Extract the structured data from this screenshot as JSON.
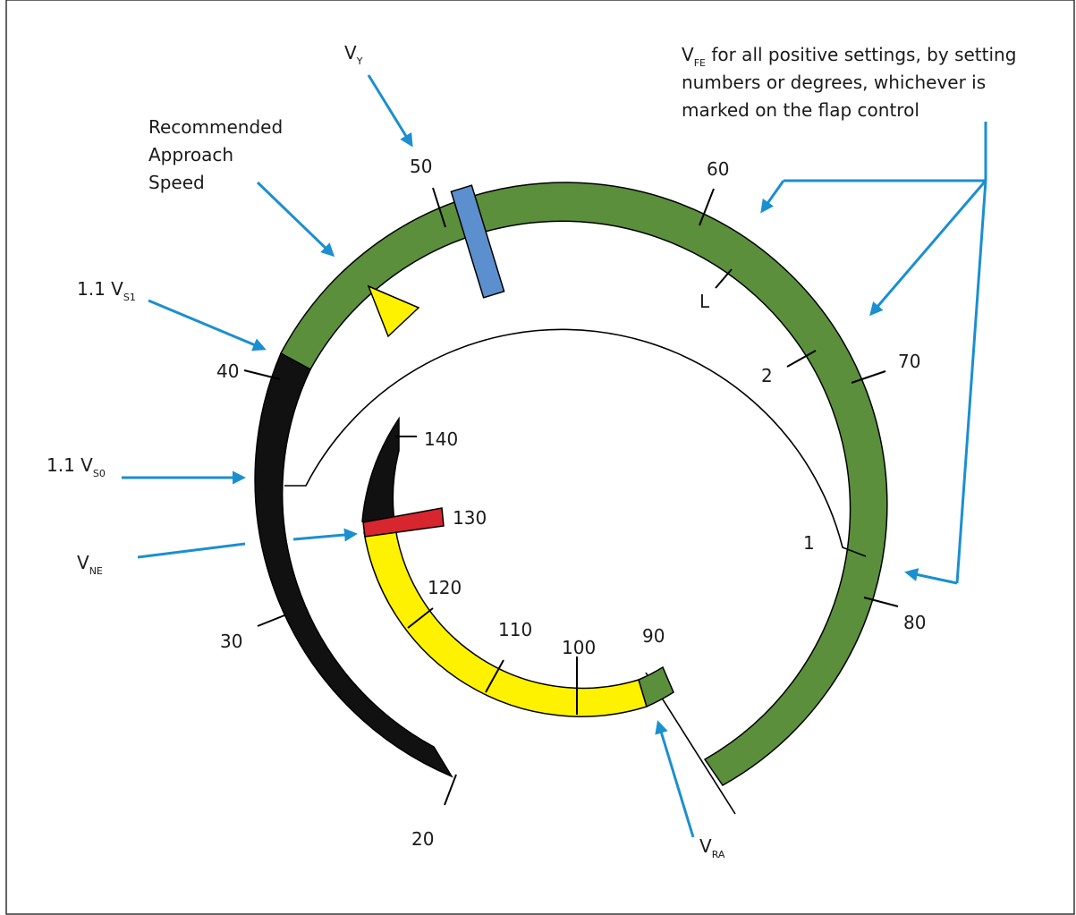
{
  "speed_labels": {
    "s20": "20",
    "s30": "30",
    "s40": "40",
    "s50": "50",
    "s60": "60",
    "s70": "70",
    "s80": "80",
    "s90": "90",
    "s100": "100",
    "s110": "110",
    "s120": "120",
    "s130": "130",
    "s140": "140"
  },
  "flap_labels": {
    "L": "L",
    "two": "2",
    "one": "1"
  },
  "annotations": {
    "recommended": [
      "Recommended",
      "Approach",
      "Speed"
    ],
    "vy": {
      "main": "V",
      "sub": "Y"
    },
    "vs1": {
      "prefix": "1.1 V",
      "sub": "S1"
    },
    "vs0": {
      "prefix": "1.1 V",
      "sub": "S0"
    },
    "vne": {
      "main": "V",
      "sub": "NE"
    },
    "vra": {
      "main": "V",
      "sub": "RA"
    },
    "vfe": {
      "main": "V",
      "sub": "FE",
      "line1": " for all positive settings, by setting",
      "line2": "numbers or degrees, whichever is",
      "line3": "marked on the flap control"
    }
  },
  "colors": {
    "green": "#5b8f3c",
    "black": "#111111",
    "yellow": "#fff200",
    "red": "#d7262d",
    "blue": "#5b8fce",
    "arrow": "#1b8fd0"
  }
}
